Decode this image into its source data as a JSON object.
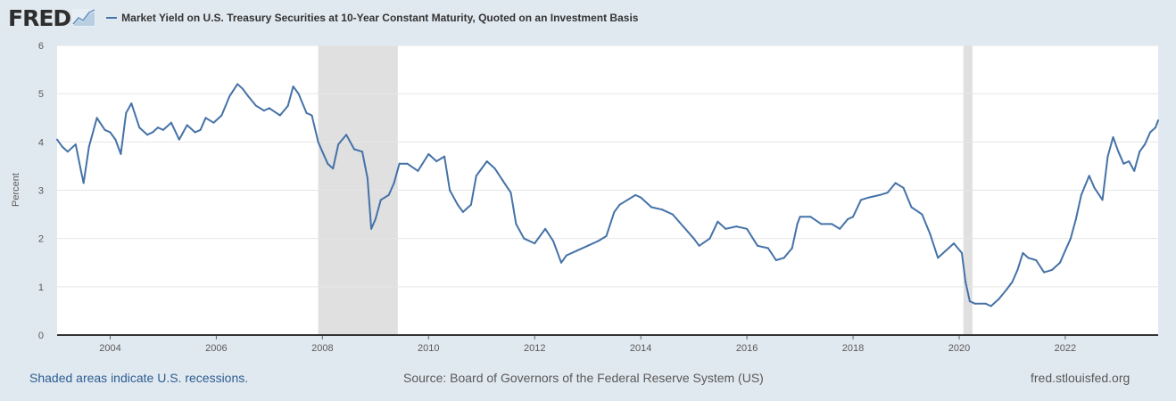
{
  "header": {
    "logo_text": "FRED",
    "title": "Market Yield on U.S. Treasury Securities at 10-Year Constant Maturity, Quoted on an Investment Basis"
  },
  "colors": {
    "series": "#4572a7",
    "recession": "#e0e0e0",
    "background": "#e1e9f0"
  },
  "footer": {
    "recession_note": "Shaded areas indicate U.S. recessions.",
    "source": "Source: Board of Governors of the Federal Reserve System (US)",
    "site": "fred.stlouisfed.org"
  },
  "chart_data": {
    "type": "line",
    "title": "Market Yield on U.S. Treasury Securities at 10-Year Constant Maturity, Quoted on an Investment Basis",
    "ylabel": "Percent",
    "xlabel": "",
    "ylim": [
      0,
      6
    ],
    "xlim": [
      2003.0,
      2023.75
    ],
    "y_ticks": [
      0,
      1,
      2,
      3,
      4,
      5,
      6
    ],
    "x_ticks": [
      2004,
      2006,
      2008,
      2010,
      2012,
      2014,
      2016,
      2018,
      2020,
      2022
    ],
    "grid": true,
    "recessions": [
      [
        2007.92,
        2009.42
      ],
      [
        2020.08,
        2020.25
      ]
    ],
    "series": [
      {
        "color": "#4572a7",
        "x": [
          2003.0,
          2003.1,
          2003.2,
          2003.35,
          2003.45,
          2003.5,
          2003.6,
          2003.75,
          2003.9,
          2004.0,
          2004.1,
          2004.2,
          2004.3,
          2004.4,
          2004.55,
          2004.7,
          2004.8,
          2004.9,
          2005.0,
          2005.15,
          2005.3,
          2005.45,
          2005.6,
          2005.7,
          2005.8,
          2005.95,
          2006.1,
          2006.25,
          2006.4,
          2006.5,
          2006.6,
          2006.75,
          2006.9,
          2007.0,
          2007.2,
          2007.35,
          2007.45,
          2007.55,
          2007.7,
          2007.8,
          2007.92,
          2008.0,
          2008.1,
          2008.2,
          2008.3,
          2008.45,
          2008.6,
          2008.75,
          2008.85,
          2008.92,
          2009.0,
          2009.1,
          2009.25,
          2009.35,
          2009.45,
          2009.6,
          2009.8,
          2010.0,
          2010.15,
          2010.3,
          2010.4,
          2010.55,
          2010.65,
          2010.8,
          2010.9,
          2011.0,
          2011.1,
          2011.25,
          2011.4,
          2011.55,
          2011.65,
          2011.8,
          2012.0,
          2012.2,
          2012.35,
          2012.5,
          2012.6,
          2012.8,
          2013.0,
          2013.2,
          2013.35,
          2013.5,
          2013.6,
          2013.75,
          2013.9,
          2014.0,
          2014.2,
          2014.4,
          2014.6,
          2014.8,
          2015.0,
          2015.1,
          2015.3,
          2015.45,
          2015.6,
          2015.8,
          2016.0,
          2016.2,
          2016.4,
          2016.55,
          2016.7,
          2016.85,
          2016.95,
          2017.0,
          2017.2,
          2017.4,
          2017.6,
          2017.75,
          2017.9,
          2018.0,
          2018.15,
          2018.3,
          2018.5,
          2018.65,
          2018.8,
          2018.95,
          2019.1,
          2019.3,
          2019.45,
          2019.6,
          2019.75,
          2019.9,
          2020.05,
          2020.12,
          2020.2,
          2020.3,
          2020.5,
          2020.6,
          2020.75,
          2020.9,
          2021.0,
          2021.1,
          2021.2,
          2021.3,
          2021.45,
          2021.6,
          2021.75,
          2021.9,
          2022.0,
          2022.1,
          2022.2,
          2022.3,
          2022.45,
          2022.55,
          2022.7,
          2022.8,
          2022.9,
          2023.0,
          2023.1,
          2023.2,
          2023.3,
          2023.4,
          2023.5,
          2023.6,
          2023.7,
          2023.75
        ],
        "values": [
          4.05,
          3.9,
          3.8,
          3.95,
          3.4,
          3.15,
          3.9,
          4.5,
          4.25,
          4.2,
          4.05,
          3.75,
          4.6,
          4.8,
          4.3,
          4.15,
          4.2,
          4.3,
          4.25,
          4.4,
          4.05,
          4.35,
          4.2,
          4.25,
          4.5,
          4.4,
          4.55,
          4.95,
          5.2,
          5.1,
          4.95,
          4.75,
          4.65,
          4.7,
          4.55,
          4.75,
          5.15,
          5.0,
          4.6,
          4.55,
          4.0,
          3.8,
          3.55,
          3.45,
          3.95,
          4.15,
          3.85,
          3.8,
          3.25,
          2.2,
          2.4,
          2.8,
          2.9,
          3.15,
          3.55,
          3.55,
          3.4,
          3.75,
          3.6,
          3.7,
          3.0,
          2.7,
          2.55,
          2.7,
          3.3,
          3.45,
          3.6,
          3.45,
          3.2,
          2.95,
          2.3,
          2.0,
          1.9,
          2.2,
          1.95,
          1.5,
          1.65,
          1.75,
          1.85,
          1.95,
          2.05,
          2.55,
          2.7,
          2.8,
          2.9,
          2.85,
          2.65,
          2.6,
          2.5,
          2.25,
          2.0,
          1.85,
          2.0,
          2.35,
          2.2,
          2.25,
          2.2,
          1.85,
          1.8,
          1.55,
          1.6,
          1.8,
          2.3,
          2.45,
          2.45,
          2.3,
          2.3,
          2.2,
          2.4,
          2.45,
          2.8,
          2.85,
          2.9,
          2.95,
          3.15,
          3.05,
          2.65,
          2.5,
          2.1,
          1.6,
          1.75,
          1.9,
          1.7,
          1.1,
          0.7,
          0.65,
          0.65,
          0.6,
          0.75,
          0.95,
          1.1,
          1.35,
          1.7,
          1.6,
          1.55,
          1.3,
          1.35,
          1.5,
          1.75,
          2.0,
          2.4,
          2.9,
          3.3,
          3.05,
          2.8,
          3.7,
          4.1,
          3.8,
          3.55,
          3.6,
          3.4,
          3.8,
          3.95,
          4.2,
          4.3,
          4.45
        ]
      }
    ]
  }
}
